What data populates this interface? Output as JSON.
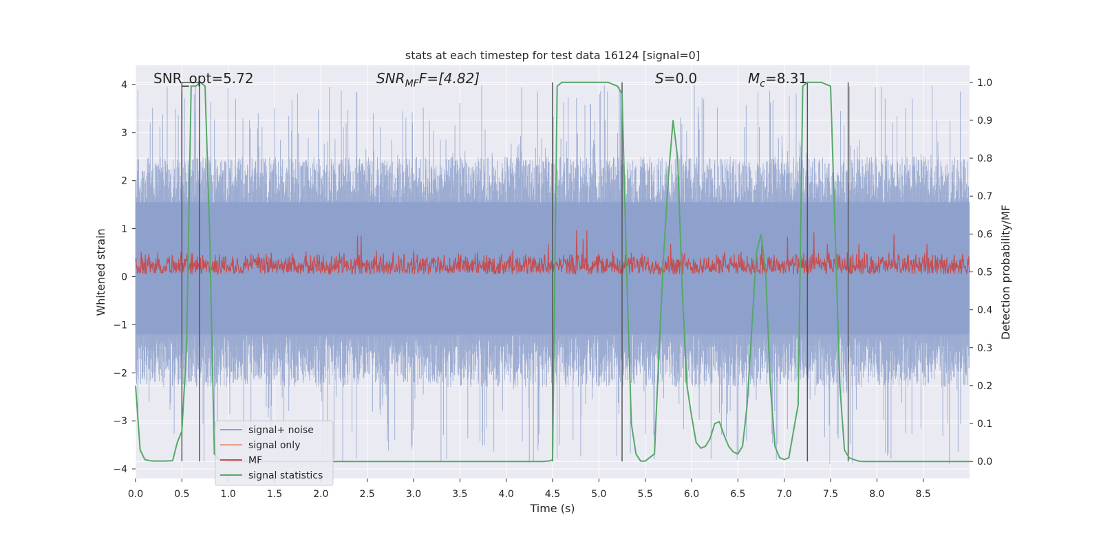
{
  "chart_data": {
    "type": "line",
    "title": "stats at each timestep for test data 16124 [signal=0]",
    "xlabel": "Time (s)",
    "ylabel": "Whitened strain",
    "y2label": "Detection probability/MF",
    "xlim": [
      0.0,
      9.0
    ],
    "ylim": [
      -4.2,
      4.4
    ],
    "y2lim": [
      -0.045,
      1.045
    ],
    "x_ticks": [
      "0.0",
      "0.5",
      "1.0",
      "1.5",
      "2.0",
      "2.5",
      "3.0",
      "3.5",
      "4.0",
      "4.5",
      "5.0",
      "5.5",
      "6.0",
      "6.5",
      "7.0",
      "7.5",
      "8.0",
      "8.5"
    ],
    "y_ticks": [
      "4",
      "3",
      "2",
      "1",
      "0",
      "−1",
      "−2",
      "−3",
      "−4"
    ],
    "y2_ticks": [
      "1.0",
      "0.9",
      "0.8",
      "0.7",
      "0.6",
      "0.5",
      "0.4",
      "0.3",
      "0.2",
      "0.1",
      "0.0"
    ],
    "annotations": {
      "snr_opt": "SNR_opt=5.72",
      "snr_mf_main": "SNR",
      "snr_mf_sub": "MF",
      "snr_mf_rest": "F=[4.82]",
      "s_label": "S",
      "s_rest": "=0.0",
      "mc_main": "M",
      "mc_sub": "c",
      "mc_rest": "=8.31"
    },
    "legend": [
      "signal+ noise",
      "signal only",
      "MF",
      "signal statistics"
    ],
    "colors": {
      "noise": "#8da0cb",
      "signal_only": "#e8a088",
      "mf": "#c44e52",
      "stat": "#55a868",
      "vlines": "#555555",
      "bg": "#eaeaf2"
    },
    "vlines_x": [
      0.5,
      0.69,
      4.5,
      5.25,
      7.25,
      7.69
    ],
    "noise_amplitude_envelope": {
      "typical_max": 2.5,
      "peak_max": 4.0,
      "typical_min": -2.3,
      "peak_min": -3.9
    },
    "mf_band": {
      "low": 0.05,
      "high": 0.55,
      "peak": 1.0
    },
    "signal_statistics": {
      "x": [
        0.0,
        0.05,
        0.1,
        0.15,
        0.2,
        0.3,
        0.4,
        0.45,
        0.5,
        0.55,
        0.6,
        0.65,
        0.7,
        0.75,
        0.8,
        0.85,
        0.9,
        1.0,
        1.5,
        2.0,
        2.5,
        3.0,
        3.5,
        4.0,
        4.4,
        4.48,
        4.5,
        4.55,
        4.6,
        4.8,
        5.0,
        5.1,
        5.2,
        5.25,
        5.3,
        5.35,
        5.4,
        5.45,
        5.5,
        5.6,
        5.65,
        5.7,
        5.75,
        5.8,
        5.85,
        5.9,
        5.95,
        6.0,
        6.05,
        6.1,
        6.15,
        6.2,
        6.25,
        6.3,
        6.35,
        6.4,
        6.45,
        6.5,
        6.55,
        6.6,
        6.65,
        6.7,
        6.75,
        6.8,
        6.85,
        6.9,
        6.95,
        7.0,
        7.05,
        7.1,
        7.15,
        7.2,
        7.25,
        7.3,
        7.35,
        7.4,
        7.5,
        7.6,
        7.65,
        7.7,
        7.75,
        7.8,
        7.85,
        7.9,
        8.0,
        8.5,
        9.0
      ],
      "y": [
        0.2,
        0.03,
        0.005,
        0.002,
        0.001,
        0.001,
        0.002,
        0.05,
        0.08,
        0.3,
        0.99,
        0.99,
        1.0,
        0.99,
        0.6,
        0.02,
        0.005,
        0.001,
        0.0,
        0.0,
        0.0,
        0.0,
        0.0,
        0.0,
        0.0,
        0.002,
        0.005,
        0.99,
        1.0,
        1.0,
        1.0,
        1.0,
        0.99,
        0.97,
        0.5,
        0.1,
        0.02,
        0.001,
        0.001,
        0.02,
        0.3,
        0.55,
        0.75,
        0.9,
        0.8,
        0.45,
        0.2,
        0.12,
        0.05,
        0.035,
        0.04,
        0.06,
        0.1,
        0.105,
        0.07,
        0.04,
        0.025,
        0.02,
        0.04,
        0.15,
        0.35,
        0.55,
        0.6,
        0.5,
        0.2,
        0.04,
        0.01,
        0.005,
        0.01,
        0.08,
        0.15,
        0.99,
        1.0,
        1.0,
        1.0,
        1.0,
        0.99,
        0.2,
        0.03,
        0.01,
        0.005,
        0.001,
        0.0,
        0.0,
        0.0,
        0.0,
        0.0
      ]
    }
  }
}
